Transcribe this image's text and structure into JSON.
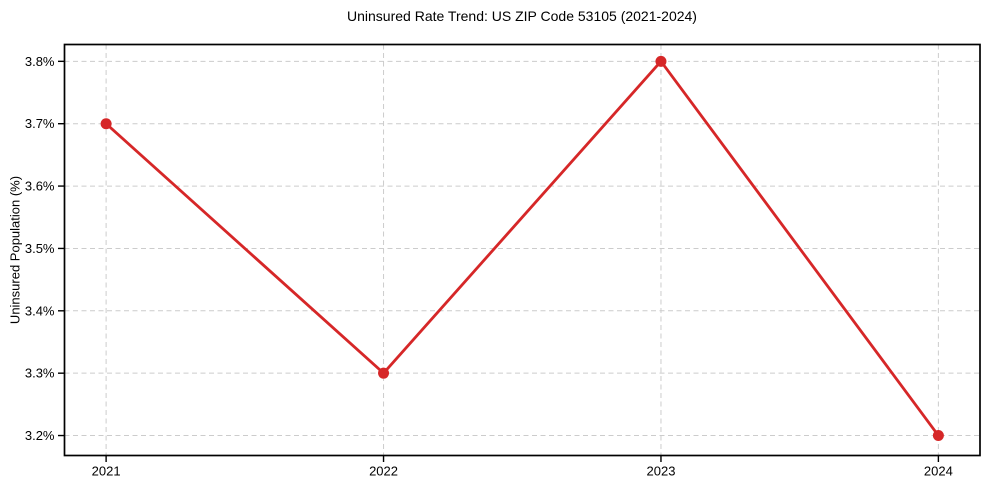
{
  "chart_data": {
    "type": "line",
    "title": "Uninsured Rate Trend: US ZIP Code 53105 (2021-2024)",
    "xlabel": "",
    "ylabel": "Uninsured Population (%)",
    "x": [
      2021,
      2022,
      2023,
      2024
    ],
    "values": [
      3.7,
      3.3,
      3.8,
      3.2
    ],
    "xticks": [
      2021,
      2022,
      2023,
      2024
    ],
    "xtick_labels": [
      "2021",
      "2022",
      "2023",
      "2024"
    ],
    "yticks": [
      3.2,
      3.3,
      3.4,
      3.5,
      3.6,
      3.7,
      3.8
    ],
    "ytick_labels": [
      "3.2%",
      "3.3%",
      "3.4%",
      "3.5%",
      "3.6%",
      "3.7%",
      "3.8%"
    ],
    "xlim": [
      2020.85,
      2024.15
    ],
    "ylim": [
      3.168,
      3.827
    ],
    "grid": true,
    "grid_style": "dashed",
    "legend_position": "none",
    "line_color": "#d62728",
    "marker": "circle",
    "marker_radius": 5.5,
    "line_width": 2.8,
    "grid_color": "#cccccc",
    "axis_color": "#000000",
    "text_color": "#000000",
    "background": "#ffffff"
  }
}
